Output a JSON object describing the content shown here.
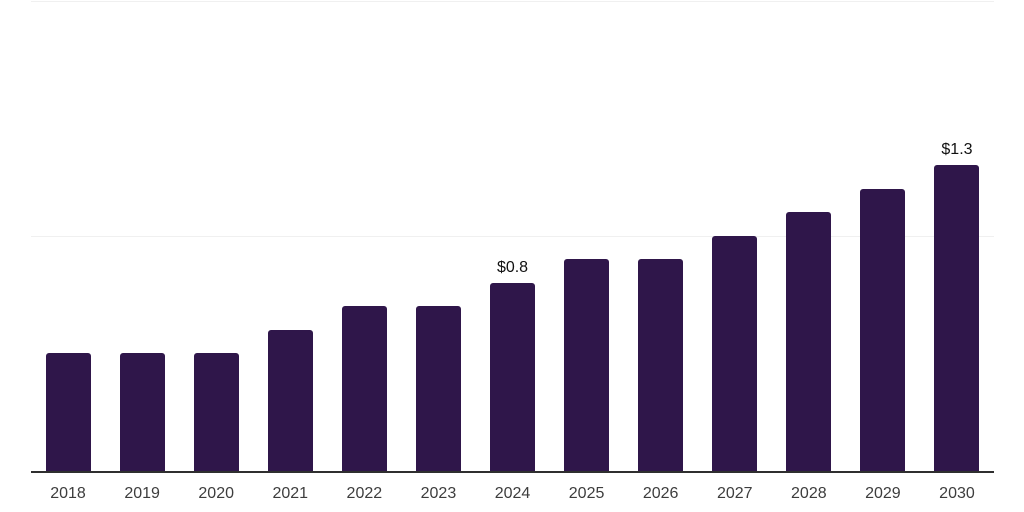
{
  "chart_data": {
    "type": "bar",
    "title": "",
    "xlabel": "",
    "ylabel": "",
    "categories": [
      "2018",
      "2019",
      "2020",
      "2021",
      "2022",
      "2023",
      "2024",
      "2025",
      "2026",
      "2027",
      "2028",
      "2029",
      "2030"
    ],
    "values": [
      0.5,
      0.5,
      0.5,
      0.6,
      0.7,
      0.7,
      0.8,
      0.9,
      0.9,
      1.0,
      1.1,
      1.2,
      1.3
    ],
    "data_labels": {
      "2024": "$0.8",
      "2030": "$1.3"
    },
    "ylim": [
      0,
      2.0
    ],
    "gridlines": [
      1.0,
      2.0
    ],
    "grid": true,
    "legend_position": "none",
    "colors": {
      "bar": "#2F164A",
      "axis": "#2f2f2f",
      "gridline": "#f0f0f0",
      "tick_text": "#3d3d3d",
      "data_label_text": "#111111",
      "background": "#ffffff"
    }
  }
}
